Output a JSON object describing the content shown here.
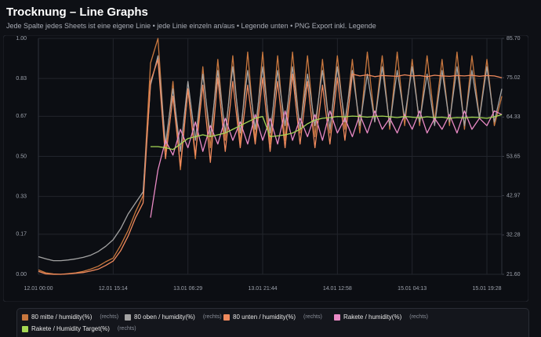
{
  "chart_data": {
    "type": "line",
    "title": "Trocknung – Line Graphs",
    "subtitle": "Jede Spalte jedes Sheets ist eine eigene Linie • jede Linie einzeln an/aus • Legende unten • PNG Export inkl. Legende",
    "categories": [
      "12.01 00:00",
      null,
      null,
      null,
      null,
      null,
      null,
      null,
      null,
      null,
      "12.01 15:14",
      null,
      null,
      null,
      null,
      null,
      null,
      null,
      null,
      null,
      "13.01 06:29",
      null,
      null,
      null,
      null,
      null,
      null,
      null,
      null,
      null,
      "13.01 21:44",
      null,
      null,
      null,
      null,
      null,
      null,
      null,
      null,
      null,
      "14.01 12:58",
      null,
      null,
      null,
      null,
      null,
      null,
      null,
      null,
      null,
      "15.01 04:13",
      null,
      null,
      null,
      null,
      null,
      null,
      null,
      null,
      null,
      "15.01 19:28",
      null,
      null
    ],
    "ylim": [
      0,
      1
    ],
    "yticks": [
      {
        "value": 0,
        "label": "0.00"
      },
      0.17,
      0.33,
      {
        "value": 0.5,
        "label": "0.50"
      },
      0.67,
      0.83,
      {
        "value": 1,
        "label": "1.00"
      }
    ],
    "y2lim": [
      21.6,
      85.7
    ],
    "y2ticks": [
      {
        "value": 21.6,
        "label": "21.60"
      },
      32.28,
      42.97,
      53.65,
      64.33,
      75.02,
      {
        "value": 85.7,
        "label": "85.70"
      }
    ],
    "grid": true,
    "series": [
      {
        "name": "80 mitte / humidity(%)",
        "axis_tag": "(rechts)",
        "axis": "y2",
        "color": "#c8773e",
        "values": [
          22.8,
          22.0,
          21.7,
          21.6,
          21.8,
          22.0,
          22.4,
          23.0,
          23.8,
          25.0,
          26.0,
          29.5,
          33.5,
          38.6,
          43.0,
          79.0,
          85.7,
          55,
          74,
          50,
          72,
          53,
          78,
          56,
          80,
          58,
          81,
          57,
          82,
          58,
          82,
          57,
          81,
          58,
          82,
          60,
          81,
          59,
          80,
          60,
          81,
          61,
          80,
          60,
          82,
          63,
          81,
          61,
          82,
          62,
          80,
          62,
          81,
          63,
          80,
          62,
          82,
          61,
          81,
          64,
          80,
          62,
          70
        ]
      },
      {
        "name": "80 oben / humidity(%)",
        "axis_tag": "(rechts)",
        "axis": "y2",
        "color": "#a3a3a3",
        "values": [
          26.4,
          25.8,
          25.3,
          25.3,
          25.5,
          25.8,
          26.2,
          26.8,
          27.8,
          29.2,
          31,
          34,
          38,
          41,
          44,
          73,
          81,
          57,
          72,
          55,
          74,
          58,
          76,
          59,
          77,
          60,
          78,
          60,
          77,
          61,
          78,
          60,
          77,
          62,
          78,
          61,
          76,
          62,
          77,
          61,
          78,
          63,
          77,
          62,
          76,
          63,
          78,
          62,
          77,
          64,
          78,
          63,
          76,
          62,
          77,
          63,
          78,
          62,
          77,
          64,
          78,
          63,
          72
        ]
      },
      {
        "name": "80 unten / humidity(%)",
        "axis_tag": "(rechts)",
        "axis": "y2",
        "color": "#f08a5d",
        "values": [
          22.4,
          21.7,
          21.6,
          21.6,
          21.7,
          21.9,
          22.1,
          22.5,
          23.0,
          24.0,
          25.2,
          28.0,
          32.0,
          37.0,
          41.0,
          74,
          80,
          53,
          70,
          51,
          72,
          54,
          73,
          52,
          75,
          55,
          74,
          56,
          73,
          57,
          75,
          55,
          74,
          56,
          76,
          57,
          74,
          56,
          73,
          57,
          75,
          58,
          76,
          75.5,
          75.8,
          75.3,
          75.6,
          75.5,
          75.4,
          75.8,
          75.5,
          75.6,
          75.3,
          75.7,
          75.5,
          75.4,
          75.6,
          75.5,
          75.7,
          75.4,
          75.6,
          75.5,
          75.0
        ]
      },
      {
        "name": "Rakete / humidity(%)",
        "axis_tag": "(rechts)",
        "axis": "y2",
        "color": "#e98ac5",
        "values": [
          null,
          null,
          null,
          null,
          null,
          null,
          null,
          null,
          null,
          null,
          null,
          null,
          null,
          null,
          null,
          37,
          50,
          58,
          54,
          61,
          56,
          63,
          55,
          62,
          57,
          64,
          58,
          63,
          57,
          65,
          58,
          64,
          57,
          66,
          58,
          64,
          59,
          65,
          58,
          66,
          60,
          64,
          59,
          65,
          60,
          66,
          61,
          64,
          60,
          65,
          61,
          66,
          60,
          64,
          61,
          65,
          60,
          66,
          61,
          64,
          62,
          66,
          65
        ]
      },
      {
        "name": "Rakete / Humidity Target(%)",
        "axis_tag": "(rechts)",
        "axis": "y2",
        "color": "#a6d854",
        "values": [
          null,
          null,
          null,
          null,
          null,
          null,
          null,
          null,
          null,
          null,
          null,
          null,
          null,
          null,
          null,
          56.3,
          56.3,
          56,
          55.5,
          57,
          58.5,
          59,
          59.5,
          59,
          59.5,
          60,
          61,
          62,
          63,
          64,
          64.5,
          59,
          59.2,
          59.5,
          60,
          61,
          62.5,
          63.5,
          64,
          64.2,
          64.5,
          64.4,
          64.6,
          64.5,
          64.3,
          64.5,
          64.6,
          64.4,
          64.2,
          64.5,
          64.3,
          64.1,
          64.4,
          64.2,
          64.3,
          64.0,
          64.2,
          64.1,
          64.3,
          64.2,
          64.0,
          64.4,
          65.0
        ]
      }
    ]
  }
}
